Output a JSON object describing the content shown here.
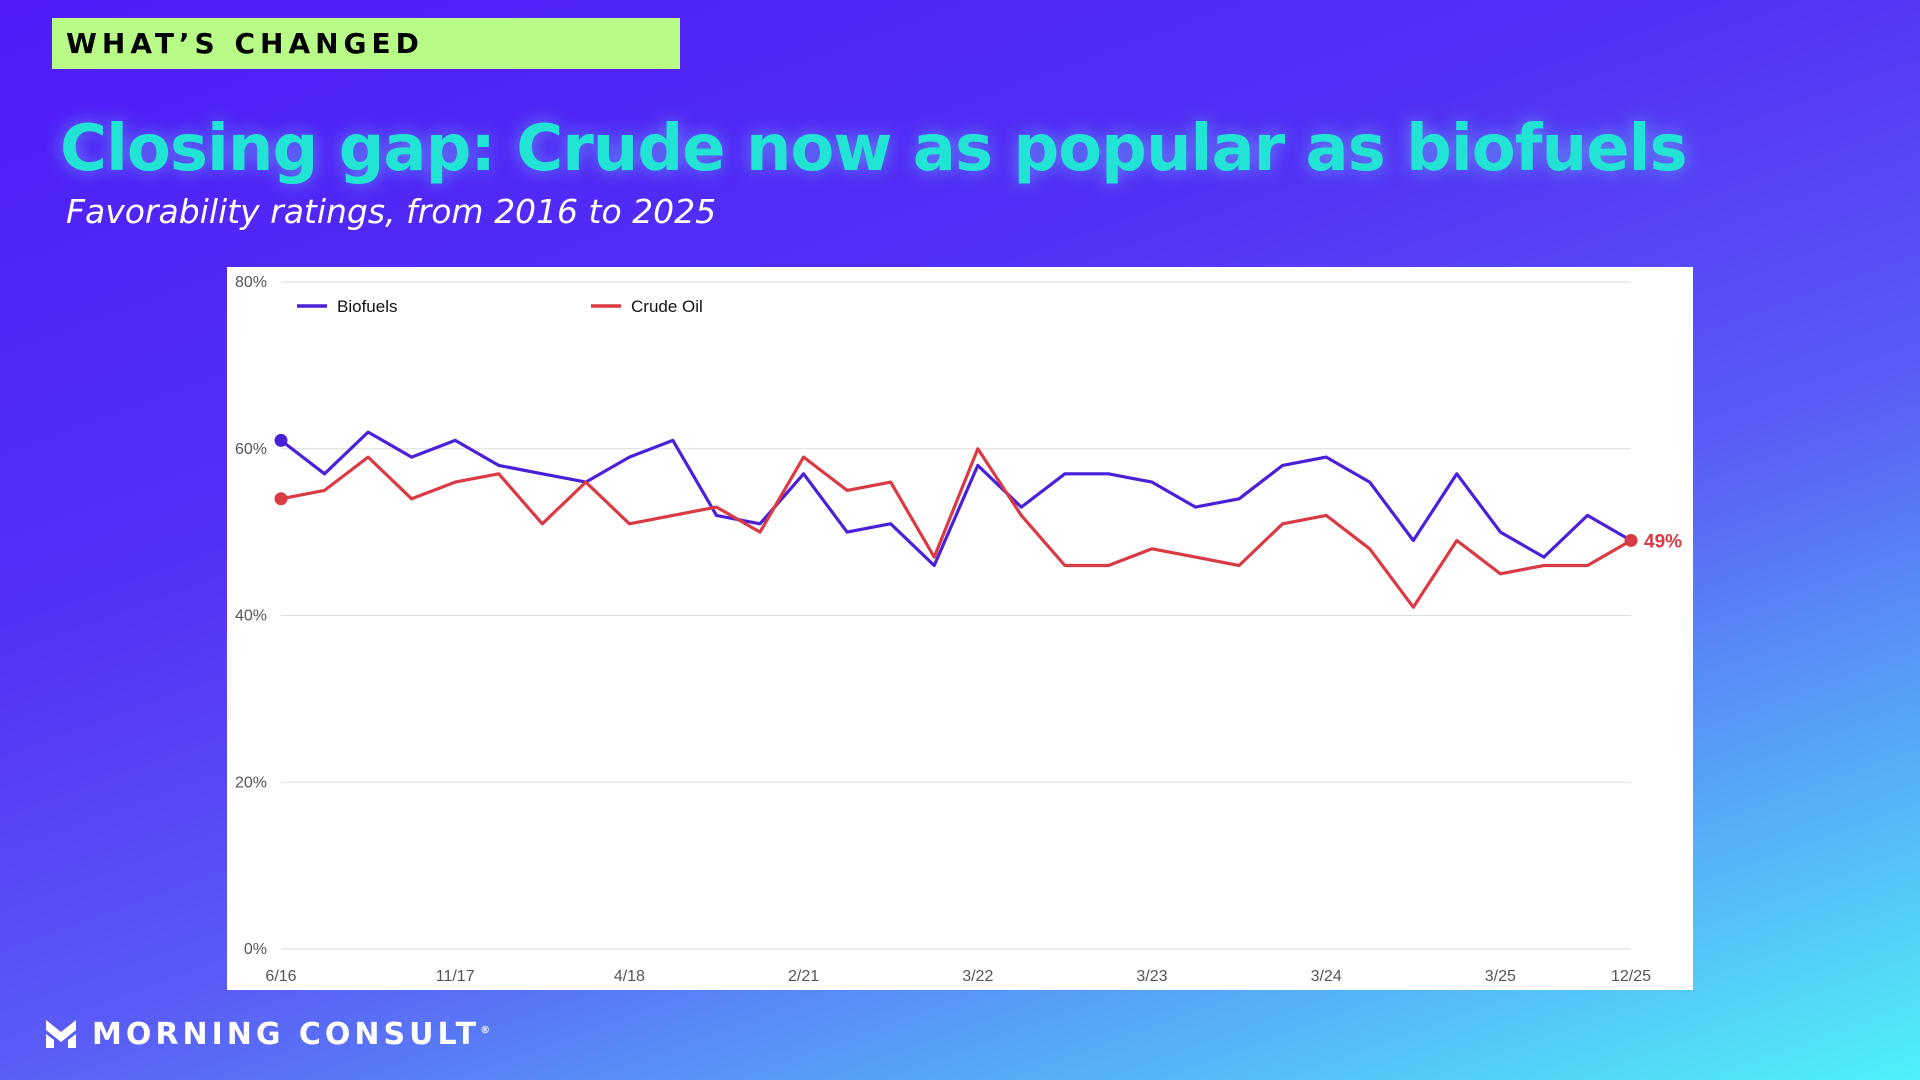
{
  "header": {
    "tag": "WHAT’S CHANGED",
    "title": "Closing gap: Crude now as popular as biofuels",
    "subtitle": "Favorability ratings, from 2016 to 2025"
  },
  "footer": {
    "brand": "MORNING CONSULT",
    "brand_mark": "®"
  },
  "colors": {
    "biofuels": "#4a20d9",
    "crude": "#d93a44",
    "grid": "#dddddd",
    "tick": "#555555"
  },
  "chart_data": {
    "type": "line",
    "title": "Closing gap: Crude now as popular as biofuels",
    "subtitle": "Favorability ratings, from 2016 to 2025",
    "xlabel": "",
    "ylabel": "",
    "ylim": [
      0,
      80
    ],
    "yticks": [
      0,
      20,
      40,
      60,
      80
    ],
    "ytick_labels": [
      "0%",
      "20%",
      "40%",
      "60%",
      "80%"
    ],
    "x_tick_labels": [
      "6/16",
      "11/17",
      "4/18",
      "2/21",
      "3/22",
      "3/23",
      "3/24",
      "3/25",
      "12/25"
    ],
    "x_tick_positions": [
      0,
      4,
      8,
      12,
      16,
      20,
      24,
      28,
      31
    ],
    "grid": true,
    "legend_position": "top-left",
    "series": [
      {
        "name": "Biofuels",
        "color": "#4a20d9",
        "values": [
          61,
          57,
          62,
          59,
          61,
          58,
          57,
          56,
          59,
          61,
          52,
          51,
          57,
          50,
          51,
          46,
          58,
          53,
          57,
          57,
          56,
          53,
          54,
          58,
          59,
          56,
          49,
          57,
          50,
          47,
          52,
          49
        ]
      },
      {
        "name": "Crude Oil",
        "color": "#d93a44",
        "values": [
          54,
          55,
          59,
          54,
          56,
          57,
          51,
          56,
          51,
          52,
          53,
          50,
          59,
          55,
          56,
          47,
          60,
          52,
          46,
          46,
          48,
          47,
          46,
          51,
          52,
          48,
          41,
          49,
          45,
          46,
          46,
          49
        ]
      }
    ],
    "annotations": [
      {
        "series": "Crude Oil",
        "index": 31,
        "text": "49%"
      }
    ]
  }
}
